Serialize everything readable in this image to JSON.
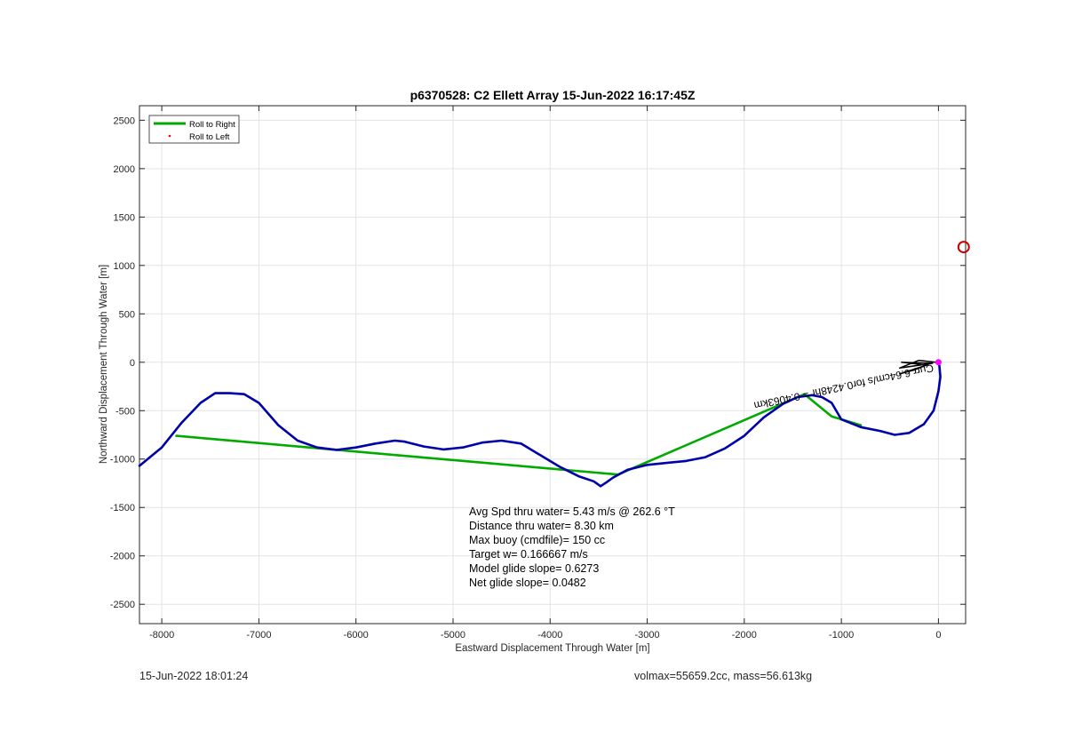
{
  "chart_data": {
    "type": "line",
    "title": "p6370528: C2 Ellett Array 15-Jun-2022 16:17:45Z",
    "xlabel": "Eastward Displacement Through Water [m]",
    "ylabel": "Northward Displacement Through Water [m]",
    "xlim": [
      -8230,
      280
    ],
    "ylim": [
      -2700,
      2650
    ],
    "xticks": [
      -8000,
      -7000,
      -6000,
      -5000,
      -4000,
      -3000,
      -2000,
      -1000,
      0
    ],
    "yticks": [
      -2500,
      -2000,
      -1500,
      -1000,
      -500,
      0,
      500,
      1000,
      1500,
      2000,
      2500
    ],
    "grid": true,
    "legend": {
      "position": "top-left",
      "entries": [
        {
          "label": "Roll to Right",
          "color": "#00aa00",
          "style": "line"
        },
        {
          "label": "Roll to Left",
          "color": "#ff0000",
          "style": "dot"
        }
      ]
    },
    "series": [
      {
        "color": "#00aa00",
        "style": "line",
        "x": [
          -7850,
          -3300,
          -1380,
          -1100,
          -800
        ],
        "y": [
          -760,
          -1160,
          -330,
          -560,
          -650
        ]
      },
      {
        "color": "#0000aa",
        "style": "line",
        "x": [
          -8230,
          -8000,
          -7800,
          -7600,
          -7450,
          -7300,
          -7150,
          -7000,
          -6800,
          -6600,
          -6400,
          -6200,
          -6000,
          -5800,
          -5600,
          -5500,
          -5300,
          -5100,
          -4900,
          -4700,
          -4500,
          -4300,
          -4100,
          -3900,
          -3700,
          -3550,
          -3480,
          -3420,
          -3350,
          -3200,
          -3000,
          -2800,
          -2600,
          -2400,
          -2200,
          -2000,
          -1800,
          -1600,
          -1450,
          -1300,
          -1200,
          -1100,
          -1000,
          -800,
          -600,
          -450,
          -300,
          -150,
          -50,
          0,
          20,
          10,
          0
        ],
        "y": [
          -1070,
          -880,
          -630,
          -420,
          -320,
          -320,
          -330,
          -420,
          -650,
          -810,
          -880,
          -905,
          -880,
          -840,
          -810,
          -820,
          -870,
          -900,
          -880,
          -830,
          -810,
          -840,
          -960,
          -1080,
          -1180,
          -1230,
          -1280,
          -1240,
          -1190,
          -1110,
          -1060,
          -1040,
          -1020,
          -980,
          -890,
          -760,
          -570,
          -430,
          -360,
          -340,
          -360,
          -420,
          -590,
          -670,
          -710,
          -750,
          -730,
          -640,
          -500,
          -300,
          -150,
          -40,
          0
        ]
      },
      {
        "color": "#000000",
        "style": "line",
        "x": [
          -80,
          -250,
          -400,
          -120,
          -380,
          -60,
          -400,
          -200,
          -30
        ],
        "y": [
          -10,
          -80,
          -120,
          -30,
          0,
          -10,
          -60,
          20,
          0
        ]
      }
    ],
    "points": [
      {
        "label": "start",
        "x": 0,
        "y": 0,
        "color": "#ff00ff",
        "marker": "circle"
      },
      {
        "label": "target",
        "x": 260,
        "y": 1190,
        "color": "#cc0000",
        "marker": "circle-open"
      }
    ],
    "annotations": {
      "current": "Curr 6.64cm/s for0.4248hr = 0.4063km",
      "stats": [
        "Avg Spd thru water=  5.43 m/s @ 262.6 °T",
        "Distance thru water=  8.30 km",
        "Max buoy (cmdfile)= 150 cc",
        "Target w= 0.166667 m/s",
        "Model glide slope= 0.6273",
        "Net glide slope= 0.0482"
      ]
    }
  },
  "footer": {
    "timestamp": "15-Jun-2022 18:01:24",
    "vehicle": "volmax=55659.2cc, mass=56.613kg"
  }
}
